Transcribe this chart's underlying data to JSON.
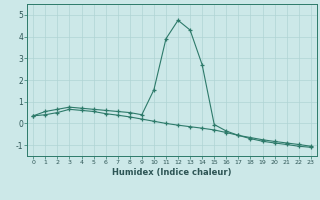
{
  "xlabel": "Humidex (Indice chaleur)",
  "x": [
    0,
    1,
    2,
    3,
    4,
    5,
    6,
    7,
    8,
    9,
    10,
    11,
    12,
    13,
    14,
    15,
    16,
    17,
    18,
    19,
    20,
    21,
    22,
    23
  ],
  "line1": [
    0.35,
    0.55,
    0.65,
    0.75,
    0.7,
    0.65,
    0.6,
    0.55,
    0.5,
    0.4,
    1.55,
    3.9,
    4.75,
    4.3,
    2.7,
    -0.05,
    -0.35,
    -0.55,
    -0.7,
    -0.82,
    -0.9,
    -0.97,
    -1.05,
    -1.1
  ],
  "line2": [
    0.35,
    0.4,
    0.5,
    0.65,
    0.6,
    0.55,
    0.45,
    0.38,
    0.3,
    0.2,
    0.1,
    0.0,
    -0.08,
    -0.15,
    -0.22,
    -0.3,
    -0.42,
    -0.55,
    -0.65,
    -0.75,
    -0.83,
    -0.9,
    -0.97,
    -1.05
  ],
  "bg_color": "#cce8e8",
  "line_color": "#2d7a6a",
  "grid_color": "#b0d4d4",
  "ylim": [
    -1.5,
    5.5
  ],
  "xlim": [
    -0.5,
    23.5
  ],
  "yticks": [
    -1,
    0,
    1,
    2,
    3,
    4,
    5
  ],
  "xticks": [
    0,
    1,
    2,
    3,
    4,
    5,
    6,
    7,
    8,
    9,
    10,
    11,
    12,
    13,
    14,
    15,
    16,
    17,
    18,
    19,
    20,
    21,
    22,
    23
  ],
  "xlabel_color": "#2d5555",
  "tick_color": "#2d5555",
  "spine_color": "#2d7a6a"
}
